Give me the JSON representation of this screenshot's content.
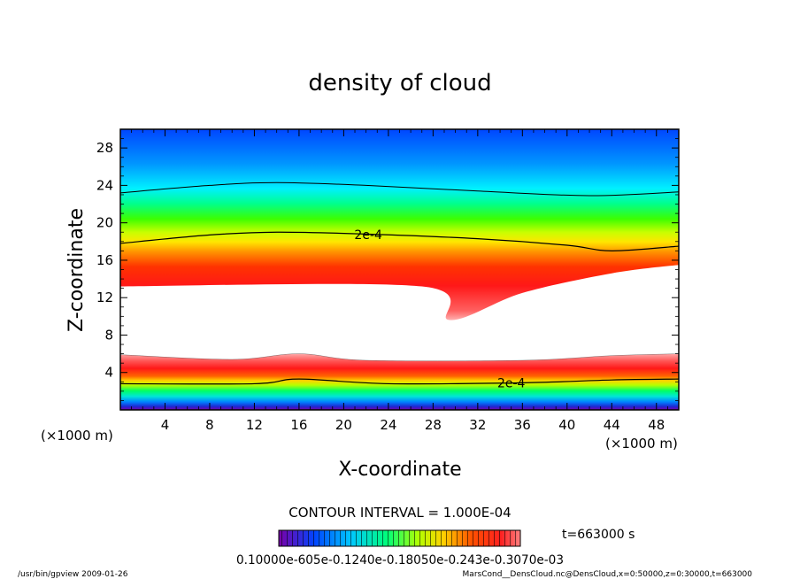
{
  "chart_data": {
    "type": "heatmap",
    "title": "density of cloud",
    "xlabel": "X-coordinate",
    "ylabel": "Z-coordinate",
    "x_unit": "(×1000 m)",
    "z_unit": "(×1000 m)",
    "xlim": [
      0,
      50
    ],
    "ylim": [
      0,
      30
    ],
    "xticks": [
      "4",
      "8",
      "12",
      "16",
      "20",
      "24",
      "28",
      "32",
      "36",
      "40",
      "44",
      "48"
    ],
    "yticks": [
      "4",
      "8",
      "12",
      "16",
      "20",
      "24",
      "28"
    ],
    "contour_label": "2e-4",
    "contour_interval_text": "CONTOUR INTERVAL = 1.000E-04",
    "time_text": "t=663000 s",
    "colorbar_range": [
      0.0001,
      0.0003
    ],
    "colorbar_text": "0.10000e-605e-0.1240e-0.18050e-0.243e-0.3070e-03",
    "upper_band_contour_2e4_z": [
      [
        0,
        17.8
      ],
      [
        8,
        18.7
      ],
      [
        14,
        19.0
      ],
      [
        22,
        18.8
      ],
      [
        32,
        18.3
      ],
      [
        40,
        17.6
      ],
      [
        44,
        17.0
      ],
      [
        50,
        17.5
      ]
    ],
    "upper_band_outer_contour_z": [
      [
        0,
        23.2
      ],
      [
        8,
        24.0
      ],
      [
        14,
        24.3
      ],
      [
        22,
        24.0
      ],
      [
        32,
        23.4
      ],
      [
        42,
        22.9
      ],
      [
        50,
        23.3
      ]
    ],
    "upper_band_bottom_z": [
      [
        0,
        13.2
      ],
      [
        27,
        13.2
      ],
      [
        29.5,
        9.6
      ],
      [
        36,
        12.5
      ],
      [
        44,
        14.6
      ],
      [
        50,
        15.5
      ]
    ],
    "lower_band_top_z": [
      [
        0,
        5.9
      ],
      [
        10,
        5.4
      ],
      [
        16,
        6.0
      ],
      [
        22,
        5.3
      ],
      [
        36,
        5.3
      ],
      [
        44,
        5.8
      ],
      [
        50,
        6.0
      ]
    ],
    "lower_band_contour_2e4_z": [
      [
        0,
        2.8
      ],
      [
        12,
        2.8
      ],
      [
        16,
        3.3
      ],
      [
        24,
        2.8
      ],
      [
        36,
        2.9
      ],
      [
        44,
        3.2
      ],
      [
        50,
        3.3
      ]
    ]
  },
  "footer": {
    "left": "/usr/bin/gpview   2009-01-26",
    "right": "MarsCond__DensCloud.nc@DensCloud,x=0:50000,z=0:30000,t=663000"
  },
  "colors": {
    "ramp": [
      "#7a00a8",
      "#3a1ab0",
      "#0046ff",
      "#0096ff",
      "#00d2ff",
      "#00ffd0",
      "#00ff70",
      "#50ff00",
      "#c8ff00",
      "#ffff00",
      "#ffc800",
      "#ff7800",
      "#ff2800",
      "#ff5050",
      "#ffa0a0"
    ]
  }
}
